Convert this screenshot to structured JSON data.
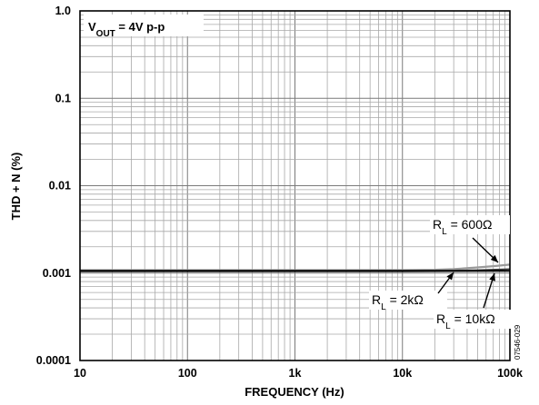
{
  "chart_data": {
    "type": "line",
    "xlabel": "FREQUENCY (Hz)",
    "ylabel": "THD + N (%)",
    "xscale": "log",
    "yscale": "log",
    "xlim": [
      10,
      100000
    ],
    "ylim": [
      0.0001,
      1.0
    ],
    "x_tick_labels": [
      "10",
      "100",
      "1k",
      "10k",
      "100k"
    ],
    "y_tick_labels": [
      "1.0",
      "0.1",
      "0.01",
      "0.001",
      "0.0001"
    ],
    "grid": true,
    "condition": {
      "main": "V",
      "sub": "OUT",
      "rest": " = 4V p-p"
    },
    "figure_id": "07546-029",
    "series": [
      {
        "name_main": "R",
        "name_sub": "L",
        "name_rest": " = 600Ω",
        "color": "#9a9a9a",
        "x": [
          10,
          100,
          1000,
          5000,
          10000,
          20000,
          30000,
          50000,
          70000,
          100000
        ],
        "y": [
          0.00108,
          0.00108,
          0.00108,
          0.00108,
          0.00108,
          0.00109,
          0.00111,
          0.00116,
          0.0012,
          0.00125
        ]
      },
      {
        "name_main": "R",
        "name_sub": "L",
        "name_rest": " = 2kΩ",
        "color": "#3a3a3a",
        "x": [
          10,
          100,
          1000,
          10000,
          30000,
          50000,
          100000
        ],
        "y": [
          0.00107,
          0.00107,
          0.00107,
          0.00107,
          0.00107,
          0.00108,
          0.00111
        ]
      },
      {
        "name_main": "R",
        "name_sub": "L",
        "name_rest": " = 10kΩ",
        "color": "#000000",
        "x": [
          10,
          100,
          1000,
          10000,
          100000
        ],
        "y": [
          0.00105,
          0.00105,
          0.00105,
          0.00105,
          0.00106
        ]
      }
    ]
  }
}
